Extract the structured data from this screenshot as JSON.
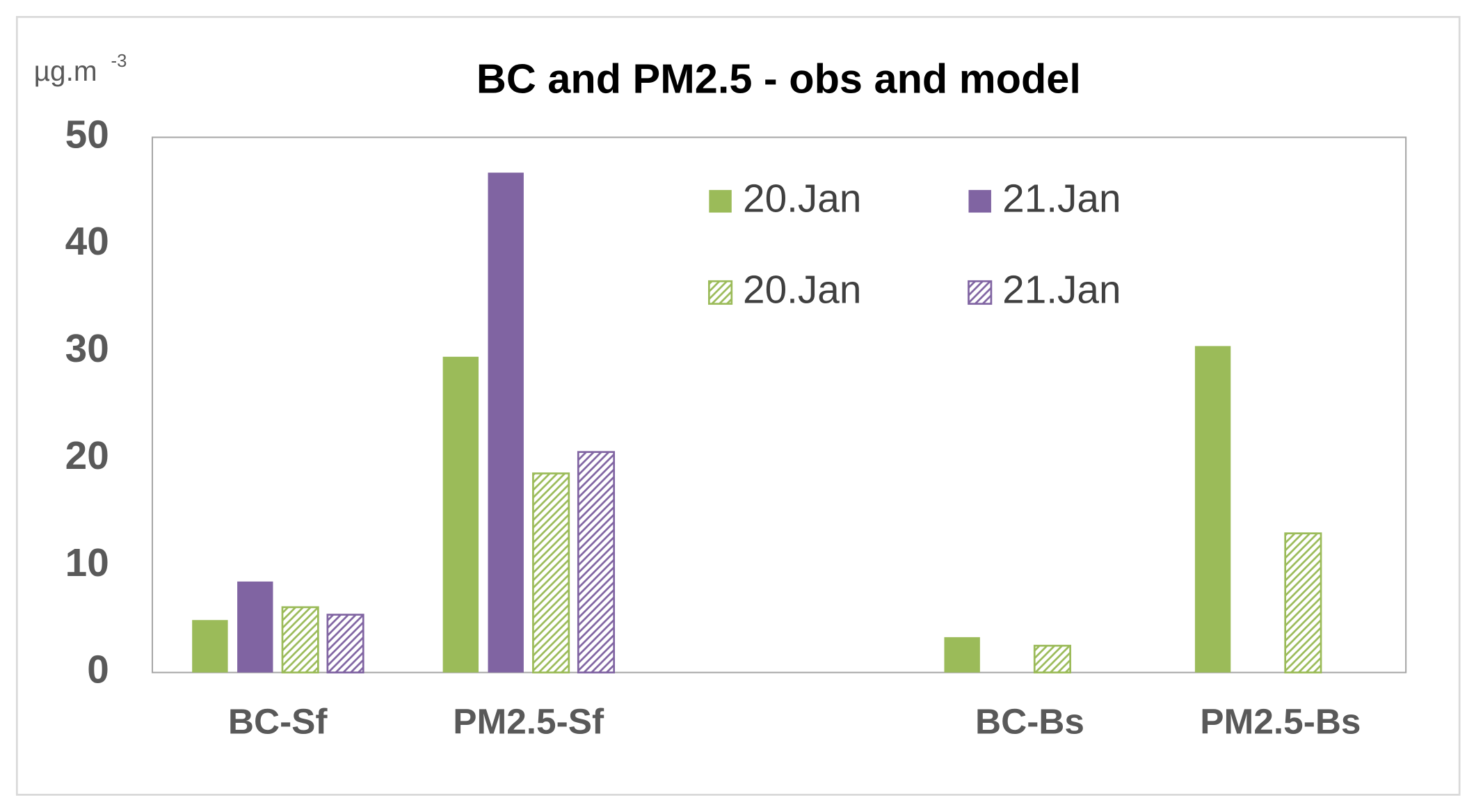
{
  "chart_data": {
    "type": "bar",
    "title": "BC and PM2.5 - obs and model",
    "unit_label": "µg.m",
    "unit_exponent": "-3",
    "categories": [
      "BC-Sf",
      "PM2.5-Sf",
      null,
      "BC-Bs",
      "PM2.5-Bs"
    ],
    "series": [
      {
        "name": "20.Jan",
        "color": "#9bbb59",
        "hatched": false,
        "values": [
          4.9,
          29.5,
          null,
          3.3,
          30.5
        ]
      },
      {
        "name": "21.Jan",
        "color": "#8064a2",
        "hatched": false,
        "values": [
          8.5,
          46.7,
          null,
          null,
          null
        ]
      },
      {
        "name": "20.Jan",
        "color": "#9bbb59",
        "hatched": true,
        "values": [
          6.1,
          18.6,
          null,
          2.5,
          13.0
        ]
      },
      {
        "name": "21.Jan",
        "color": "#8064a2",
        "hatched": true,
        "values": [
          5.4,
          20.6,
          null,
          null,
          null
        ]
      }
    ],
    "ylim": [
      0,
      50
    ],
    "yticks": [
      0,
      10,
      20,
      30,
      40,
      50
    ],
    "grid": false,
    "legend": "top-right"
  }
}
